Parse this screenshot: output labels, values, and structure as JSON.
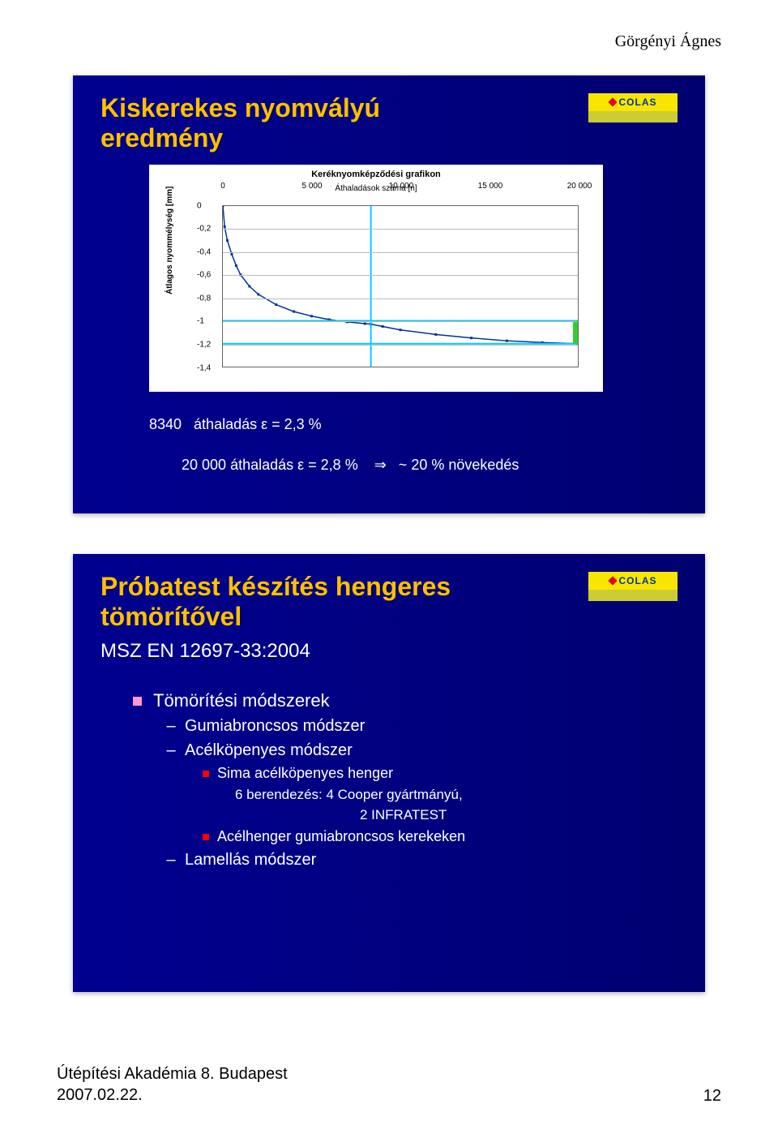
{
  "header": {
    "author": "Görgényi Ágnes"
  },
  "footer": {
    "line1": "Útépítési Akadémia 8. Budapest",
    "line2": "2007.02.22.",
    "page": "12"
  },
  "slide1": {
    "title_line1": "Kiskerekes nyomvályú",
    "title_line2": "eredmény",
    "logo_text": "COLAS",
    "chart": {
      "type": "line",
      "title": "Keréknyomképződési grafikon",
      "subtitle": "Áthaladások száma [n]",
      "ylabel": "Átlagos nyommélység [mm]",
      "xlim": [
        0,
        20000
      ],
      "ylim": [
        -1.4,
        0
      ],
      "xticks": [
        0,
        5000,
        10000,
        15000,
        20000
      ],
      "xtick_labels": [
        "0",
        "5 000",
        "10 000",
        "15 000",
        "20 000"
      ],
      "yticks": [
        0,
        -0.2,
        -0.4,
        -0.6,
        -0.8,
        -1.0,
        -1.2,
        -1.4
      ],
      "ytick_labels": [
        "0",
        "-0,2",
        "-0,4",
        "-0,6",
        "-0,8",
        "-1",
        "-1,2",
        "-1,4"
      ],
      "background_color": "#ffffff",
      "grid_color": "#bbbbbb",
      "curve_color": "#003399",
      "marker_color": "#003399",
      "vline1_x": 8340,
      "vline1_color": "#00ccff",
      "hline1_y": -1.0,
      "hline1_color": "#00ccff",
      "hline2_y": -1.2,
      "hline2_color": "#00ccff",
      "end_bar_color": "#33cc33",
      "curve_points_x": [
        0,
        100,
        250,
        500,
        750,
        1000,
        1500,
        2000,
        3000,
        4000,
        5000,
        6000,
        7000,
        8000,
        8340,
        9000,
        10000,
        12000,
        14000,
        16000,
        18000,
        20000
      ],
      "curve_points_y": [
        0,
        -0.18,
        -0.3,
        -0.42,
        -0.52,
        -0.6,
        -0.7,
        -0.77,
        -0.86,
        -0.92,
        -0.96,
        -0.99,
        -1.01,
        -1.025,
        -1.03,
        -1.05,
        -1.08,
        -1.12,
        -1.15,
        -1.175,
        -1.19,
        -1.2
      ]
    },
    "stats_line1": "8340   áthaladás ε = 2,3 %",
    "stats_line2a": "20 000 áthaladás ε = 2,8 %",
    "stats_line2b": "⇒   ~ 20 % növekedés"
  },
  "slide2": {
    "title_line1": "Próbatest készítés hengeres",
    "title_line2": "tömörítővel",
    "subtitle": "MSZ EN 12697-33:2004",
    "logo_text": "COLAS",
    "bullet_main": "Tömörítési módszerek",
    "sub_a": "Gumiabroncsos módszer",
    "sub_b": "Acélköpenyes módszer",
    "sub_b1": "Sima acélköpenyes henger",
    "sub_b1a": "6 berendezés: 4 Cooper gyártmányú,",
    "sub_b1b": "2 INFRATEST",
    "sub_b2": "Acélhenger gumiabroncsos kerekeken",
    "sub_c": "Lamellás módszer"
  }
}
